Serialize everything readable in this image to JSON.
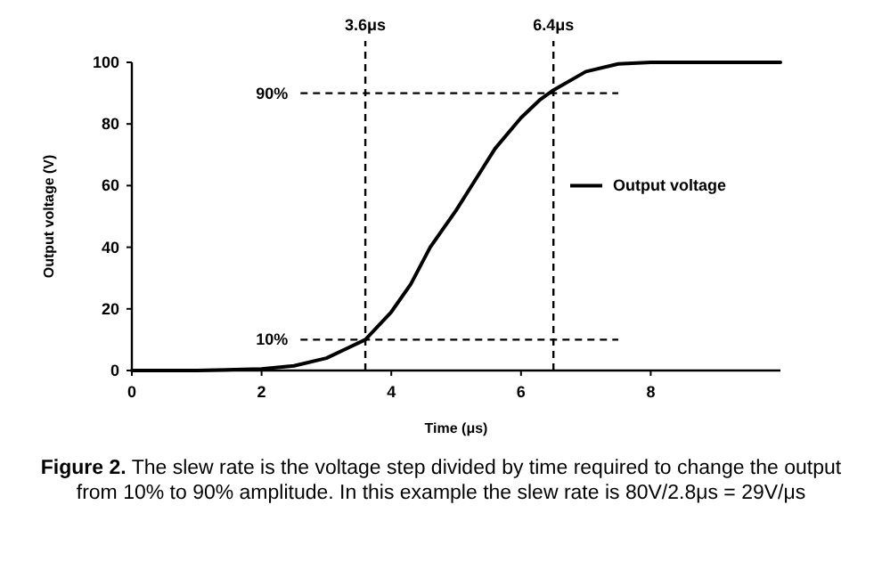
{
  "chart_data": {
    "type": "line",
    "xlabel": "Time (μs)",
    "ylabel": "Output voltage (V)",
    "xlim": [
      0,
      10
    ],
    "xticks": [
      0,
      2,
      4,
      6,
      8
    ],
    "ylim": [
      0,
      100
    ],
    "yticks": [
      0,
      20,
      40,
      60,
      80,
      100
    ],
    "grid": false,
    "legend": "right",
    "line_style": "solid",
    "marker": "none",
    "series": [
      {
        "name": "Output voltage",
        "color": "#000000",
        "x": [
          0,
          1,
          2,
          2.5,
          3,
          3.3,
          3.6,
          4,
          4.3,
          4.6,
          5,
          5.3,
          5.6,
          6,
          6.3,
          6.5,
          7,
          7.5,
          8,
          10
        ],
        "values": [
          0,
          0,
          0.5,
          1.5,
          4,
          7,
          10,
          19,
          28,
          40,
          52,
          62,
          72,
          82,
          88,
          91,
          97,
          99.5,
          100,
          100
        ]
      }
    ],
    "ref_lines": [
      {
        "axis": "x",
        "value": 3.6,
        "label": "3.6μs",
        "color": "#000000",
        "line_style": "dashed"
      },
      {
        "axis": "x",
        "value": 6.5,
        "label": "6.4μs",
        "color": "#000000",
        "line_style": "dashed"
      },
      {
        "axis": "y",
        "value": 90,
        "label": "90%",
        "color": "#000000",
        "line_style": "dashed"
      },
      {
        "axis": "y",
        "value": 10,
        "label": "10%",
        "color": "#000000",
        "line_style": "dashed"
      }
    ],
    "annotations": [
      "Figure 2. The slew rate is the voltage step divided by time required to change the output from 10% to 90% amplitude. In this example the slew rate is 80V/2.8μs = 29V/μs"
    ]
  }
}
